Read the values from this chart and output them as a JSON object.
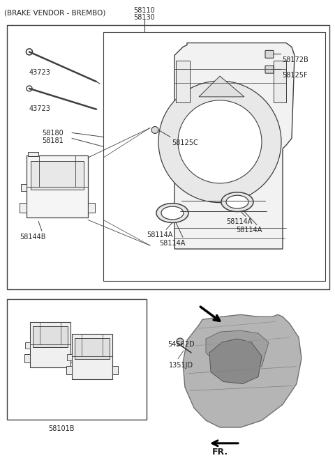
{
  "bg_color": "#ffffff",
  "line_color": "#404040",
  "gray_color": "#888888",
  "light_gray": "#cccccc",
  "title": "(BRAKE VENDOR - BREMBO)",
  "labels": {
    "top_center_1": "58110",
    "top_center_2": "58130",
    "rod_1": "43723",
    "rod_2": "43723",
    "pad_label_1": "58180",
    "pad_label_2": "58181",
    "bottom_pad": "58144B",
    "bolt_tr_1": "58172B",
    "bolt_tr_2": "58125F",
    "center_bolt": "58125C",
    "ring_ll_1": "58114A",
    "ring_ll_2": "58114A",
    "ring_r_1": "58114A",
    "ring_r_2": "58114A",
    "lower_pad": "58101B",
    "screw_top": "54562D",
    "screw_bot": "1351JD",
    "fr": "FR."
  }
}
